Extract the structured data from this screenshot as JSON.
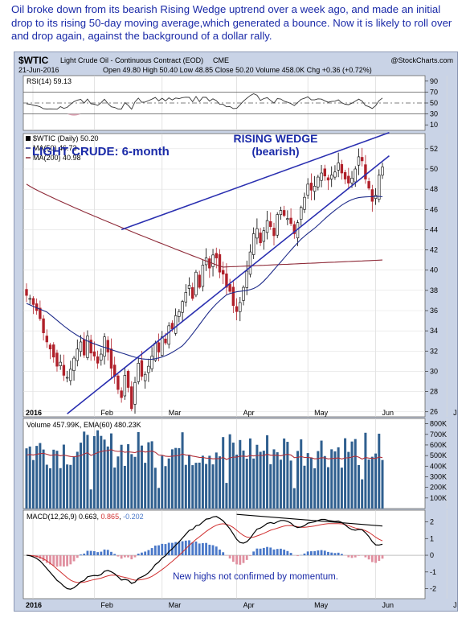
{
  "caption": "Oil broke down from its bearish Rising Wedge uptrend over a week ago, and made an initial drop to its rising 50-day moving average,which generated a bounce. Now it is likely to roll over and drop again, against the background of a dollar rally.",
  "header": {
    "symbol": "$WTIC",
    "name": "Light Crude Oil - Continuous Contract (EOD)",
    "exchange": "CME",
    "watermark": "@StockCharts.com",
    "date": "21-Jun-2016",
    "quote": "Open 49.80  High 50.40  Low 48.85  Close 50.20  Volume 458.0K  Chg +0.36 (+0.72%)"
  },
  "rsi_panel": {
    "label": "RSI(14) 59.13",
    "ticks": [
      "90",
      "70",
      "50",
      "30",
      "10"
    ]
  },
  "price_panel": {
    "legend_main": "$WTIC (Daily) 50.20",
    "legend_ma50": "MA(50) 46.73",
    "legend_ma200": "MA(200) 40.98",
    "annot_light": "LIGHT CRUDE: 6-month",
    "annot_wedge1": "RISING WEDGE",
    "annot_wedge2": "(bearish)",
    "ticks": [
      "52",
      "50",
      "48",
      "46",
      "44",
      "42",
      "40",
      "38",
      "36",
      "34",
      "32",
      "30",
      "28",
      "26"
    ]
  },
  "volume_panel": {
    "label": "Volume 457.99K, EMA(60) 480.23K",
    "ticks": [
      "800K",
      "700K",
      "600K",
      "500K",
      "400K",
      "300K",
      "200K",
      "100K"
    ]
  },
  "macd_panel": {
    "label_prefix": "MACD(12,26,9) 0.663, ",
    "label_signal": "0.865",
    "label_sep": ", ",
    "label_hist": "-0.202",
    "annotation": "New highs not confirmed by momentum.",
    "ticks": [
      "2",
      "1",
      "0",
      "-1",
      "-2"
    ]
  },
  "x_axis": {
    "labels": [
      "2016",
      "Feb",
      "Mar",
      "Apr",
      "May",
      "Jun",
      "Jul"
    ]
  },
  "colors": {
    "caption": "#1a2aa8",
    "panel_bg": "#ffffff",
    "frame_bg": "#c9d3e6",
    "up_candle": "#000000",
    "down_candle": "#b0202a",
    "ma50": "#1e2b8a",
    "ma200": "#8e2a38",
    "wedge": "#2a2fb0",
    "annotation": "#1a2aa8",
    "volume_bar": "#2f5f8f",
    "volume_ema": "#b0303a",
    "macd_line": "#000000",
    "signal_line": "#d03030",
    "hist_pos": "#4a78c8",
    "hist_neg": "#e090a0"
  },
  "chart_data": {
    "type": "candlestick",
    "title": "$WTIC Light Crude Oil - Continuous Contract (EOD)",
    "period": "6-month daily, 2016",
    "x_months": [
      "2016",
      "Feb",
      "Mar",
      "Apr",
      "May",
      "Jun",
      "Jul"
    ],
    "price_axis": {
      "ylim": [
        25.5,
        53.5
      ]
    },
    "price_close_approx": [
      37.5,
      37.2,
      36.6,
      36.0,
      35.2,
      33.8,
      32.9,
      32.2,
      31.4,
      30.5,
      30.9,
      29.6,
      29.4,
      30.2,
      31.3,
      32.2,
      32.9,
      31.6,
      33.5,
      31.8,
      31.5,
      30.8,
      31.7,
      33.4,
      31.9,
      30.3,
      29.5,
      28.2,
      27.4,
      29.6,
      28.4,
      26.3,
      28.9,
      30.8,
      29.5,
      29.7,
      30.5,
      31.5,
      32.8,
      31.9,
      33.4,
      32.8,
      34.5,
      34.2,
      35.5,
      35.9,
      36.9,
      37.8,
      38.5,
      37.2,
      39.8,
      38.3,
      40.5,
      41.2,
      40.2,
      41.5,
      41.2,
      39.8,
      39.6,
      38.3,
      37.9,
      36.5,
      35.9,
      36.8,
      38.3,
      39.9,
      41.8,
      43.6,
      44.1,
      42.7,
      43.9,
      44.9,
      44.3,
      43.4,
      45.5,
      45.9,
      45.4,
      45.1,
      44.6,
      43.6,
      44.7,
      46.2,
      47.2,
      48.5,
      47.9,
      48.3,
      49.2,
      49.6,
      49.3,
      48.9,
      49.4,
      49.7,
      50.6,
      49.6,
      49.0,
      48.6,
      49.1,
      50.0,
      51.2,
      50.8,
      49.0,
      48.1,
      46.8,
      47.4,
      49.4,
      50.2
    ],
    "ma50_anchor": {
      "value_Jan": 37,
      "value_Feb_mid": 31.8,
      "value_Apr": 37.5,
      "value_end": 46.73
    },
    "ma200_anchor": {
      "value_Jan": 48.5,
      "value_Mar": 43,
      "value_May": 40.5,
      "value_end": 40.98
    },
    "wedge_lines": [
      {
        "role": "upper",
        "from": [
          28,
          44
        ],
        "to": [
          107,
          53.6
        ]
      },
      {
        "role": "lower",
        "from": [
          12,
          25.8
        ],
        "to": [
          107,
          51.3
        ]
      }
    ],
    "rsi": {
      "ylim": [
        0,
        100
      ],
      "overbought": 70,
      "oversold": 30,
      "last": 59.13
    },
    "volume": {
      "ylim": [
        0,
        850
      ],
      "unit": "K",
      "last": 457.99,
      "ema60_last": 480.23
    },
    "macd": {
      "ylim": [
        -2.6,
        2.7
      ],
      "macd": 0.663,
      "signal": 0.865,
      "histogram": -0.202
    }
  }
}
